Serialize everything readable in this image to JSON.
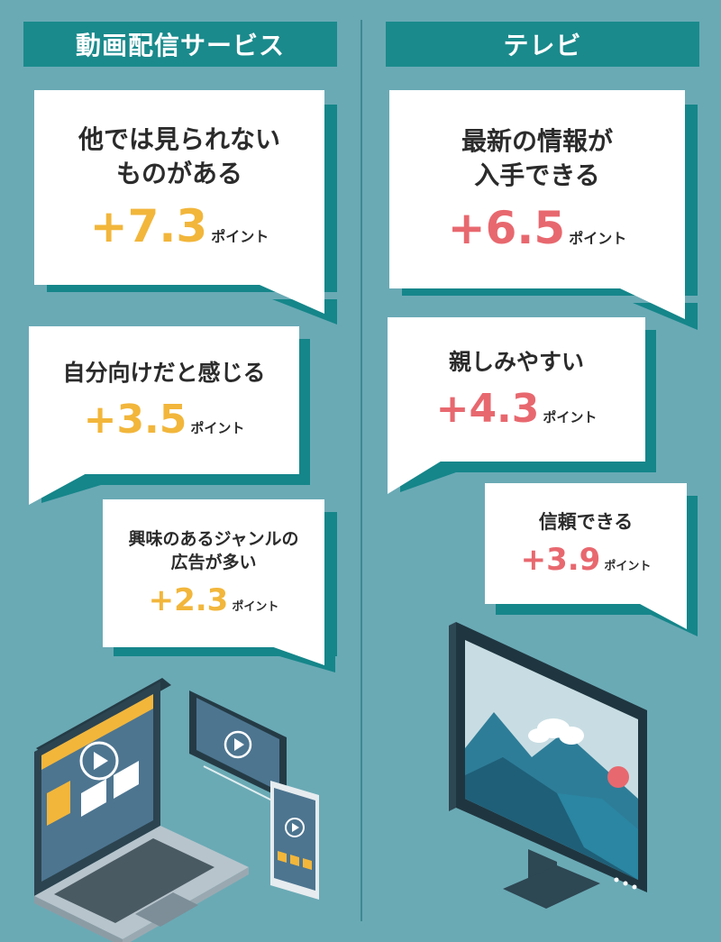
{
  "colors": {
    "background": "#6aaab5",
    "header": "#1a8a8c",
    "bubble_shadow": "#15868a",
    "video_accent": "#f2b63b",
    "tv_accent": "#e8686f",
    "text": "#2b2b2b"
  },
  "video": {
    "header": "動画配信サービス",
    "items": [
      {
        "line1": "他では見られない",
        "line2": "ものがある",
        "value": "+7.3",
        "unit": "ポイント"
      },
      {
        "line1": "自分向けだと感じる",
        "value": "+3.5",
        "unit": "ポイント"
      },
      {
        "line1": "興味のあるジャンルの",
        "line2": "広告が多い",
        "value": "+2.3",
        "unit": "ポイント"
      }
    ]
  },
  "tv": {
    "header": "テレビ",
    "items": [
      {
        "line1": "最新の情報が",
        "line2": "入手できる",
        "value": "+6.5",
        "unit": "ポイント"
      },
      {
        "line1": "親しみやすい",
        "value": "+4.3",
        "unit": "ポイント"
      },
      {
        "line1": "信頼できる",
        "value": "+3.9",
        "unit": "ポイント"
      }
    ]
  },
  "illustrations": {
    "left": [
      "laptop-icon",
      "tablet-icon",
      "smartphone-icon",
      "play-icon"
    ],
    "right": [
      "monitor-icon",
      "mountain-landscape-icon",
      "cloud-icon",
      "sun-icon"
    ]
  }
}
